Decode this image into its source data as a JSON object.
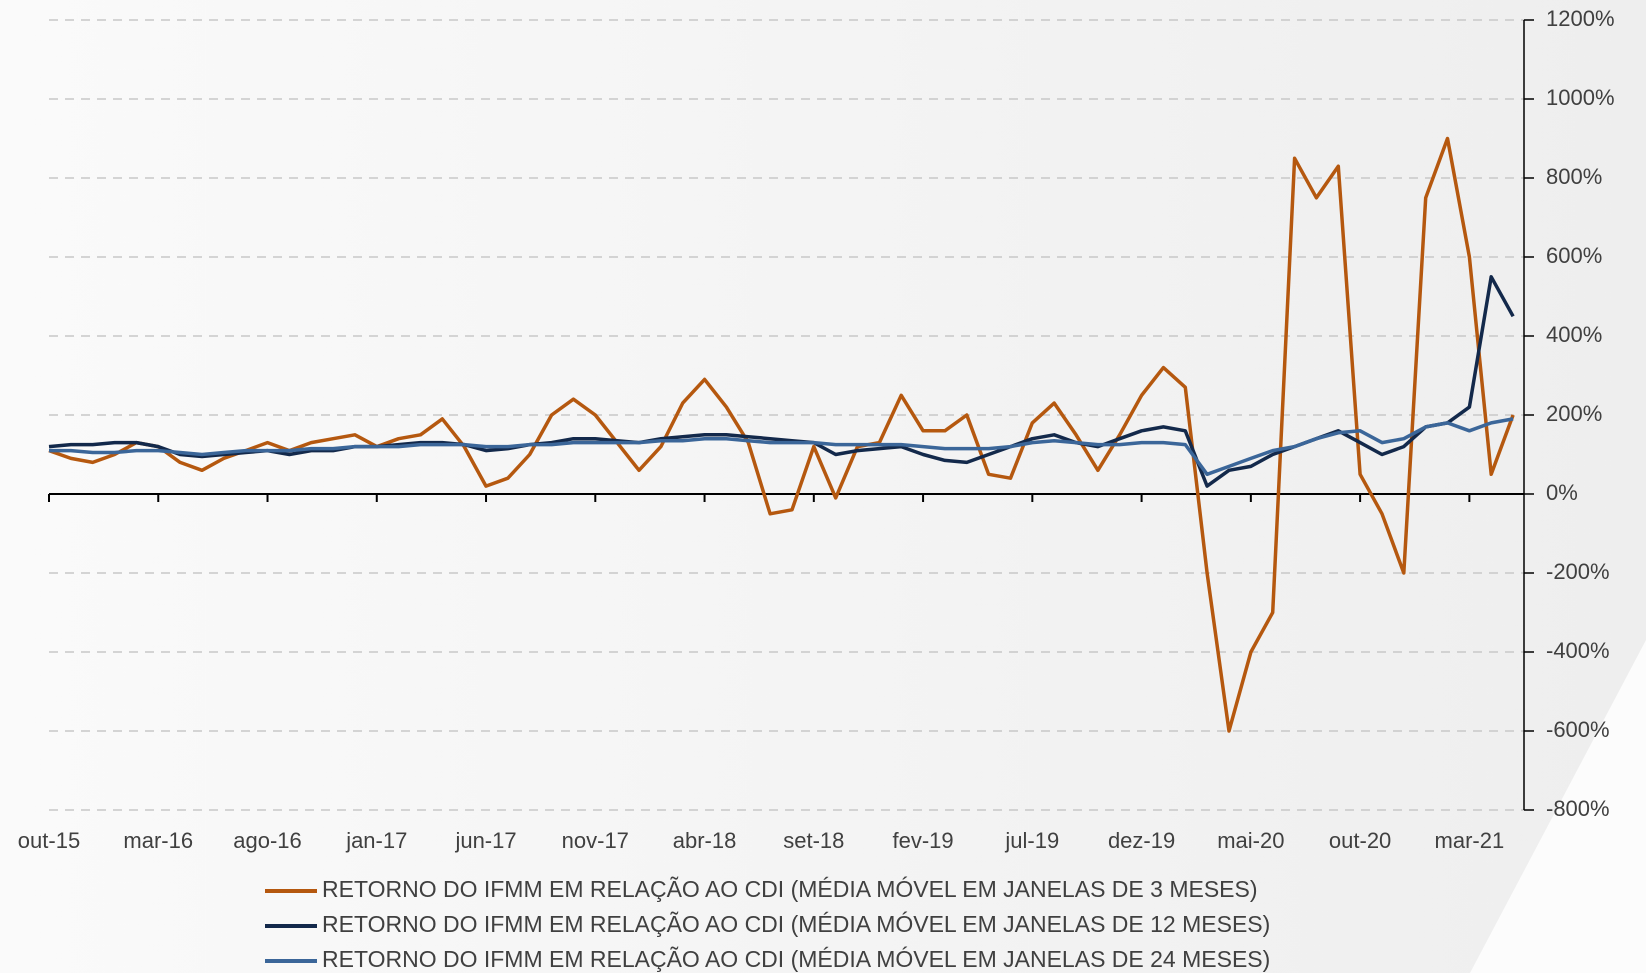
{
  "chart_data": {
    "type": "line",
    "categories": [
      "out-15",
      null,
      null,
      null,
      null,
      "mar-16",
      null,
      null,
      null,
      null,
      "ago-16",
      null,
      null,
      null,
      null,
      "jan-17",
      null,
      null,
      null,
      null,
      "jun-17",
      null,
      null,
      null,
      null,
      "nov-17",
      null,
      null,
      null,
      null,
      "abr-18",
      null,
      null,
      null,
      null,
      "set-18",
      null,
      null,
      null,
      null,
      "fev-19",
      null,
      null,
      null,
      null,
      "jul-19",
      null,
      null,
      null,
      null,
      "dez-19",
      null,
      null,
      null,
      null,
      "mai-20",
      null,
      null,
      null,
      null,
      "out-20",
      null,
      null,
      null,
      null,
      "mar-21",
      null,
      null
    ],
    "series": [
      {
        "name": "RETORNO DO IFMM EM RELAÇÃO AO CDI (MÉDIA MÓVEL EM JANELAS DE 3 MESES)",
        "color": "#b5580f",
        "values": [
          110,
          90,
          80,
          100,
          130,
          120,
          80,
          60,
          90,
          110,
          130,
          110,
          130,
          140,
          150,
          120,
          140,
          150,
          190,
          120,
          20,
          40,
          100,
          200,
          240,
          200,
          130,
          60,
          120,
          230,
          290,
          220,
          130,
          -50,
          -40,
          120,
          -10,
          120,
          130,
          250,
          160,
          160,
          200,
          50,
          40,
          180,
          230,
          150,
          60,
          150,
          250,
          320,
          270,
          -200,
          -600,
          -400,
          -300,
          850,
          750,
          830,
          50,
          -50,
          -200,
          750,
          900,
          600,
          50,
          200
        ]
      },
      {
        "name": "RETORNO DO IFMM EM RELAÇÃO AO CDI (MÉDIA MÓVEL EM JANELAS DE 12 MESES)",
        "color": "#13294b",
        "values": [
          120,
          125,
          125,
          130,
          130,
          120,
          100,
          95,
          100,
          105,
          110,
          100,
          110,
          110,
          120,
          120,
          125,
          130,
          130,
          125,
          110,
          115,
          125,
          130,
          140,
          140,
          135,
          130,
          140,
          145,
          150,
          150,
          145,
          140,
          135,
          130,
          100,
          110,
          115,
          120,
          100,
          85,
          80,
          100,
          120,
          140,
          150,
          130,
          120,
          140,
          160,
          170,
          160,
          20,
          60,
          70,
          100,
          120,
          140,
          160,
          130,
          100,
          120,
          170,
          180,
          220,
          550,
          450
        ]
      },
      {
        "name": "RETORNO DO IFMM EM RELAÇÃO AO CDI (MÉDIA MÓVEL EM JANELAS DE 24 MESES)",
        "color": "#3b6699",
        "values": [
          110,
          110,
          105,
          105,
          110,
          110,
          105,
          100,
          105,
          110,
          110,
          110,
          115,
          115,
          120,
          120,
          120,
          125,
          125,
          125,
          120,
          120,
          125,
          125,
          130,
          130,
          130,
          130,
          135,
          135,
          140,
          140,
          135,
          130,
          130,
          130,
          125,
          125,
          125,
          125,
          120,
          115,
          115,
          115,
          120,
          130,
          135,
          130,
          125,
          125,
          130,
          130,
          125,
          50,
          70,
          90,
          110,
          120,
          140,
          155,
          160,
          130,
          140,
          170,
          180,
          160,
          180,
          190
        ]
      }
    ],
    "ylim": [
      -800,
      1200
    ],
    "yticks": [
      {
        "value": -800,
        "label": "-800%"
      },
      {
        "value": -600,
        "label": "-600%"
      },
      {
        "value": -400,
        "label": "-400%"
      },
      {
        "value": -200,
        "label": "-200%"
      },
      {
        "value": 0,
        "label": "0%"
      },
      {
        "value": 200,
        "label": "200%"
      },
      {
        "value": 400,
        "label": "400%"
      },
      {
        "value": 600,
        "label": "600%"
      },
      {
        "value": 800,
        "label": "800%"
      },
      {
        "value": 1000,
        "label": "1000%"
      },
      {
        "value": 1200,
        "label": "1200%"
      }
    ],
    "grid": true,
    "legend": "bottom"
  }
}
